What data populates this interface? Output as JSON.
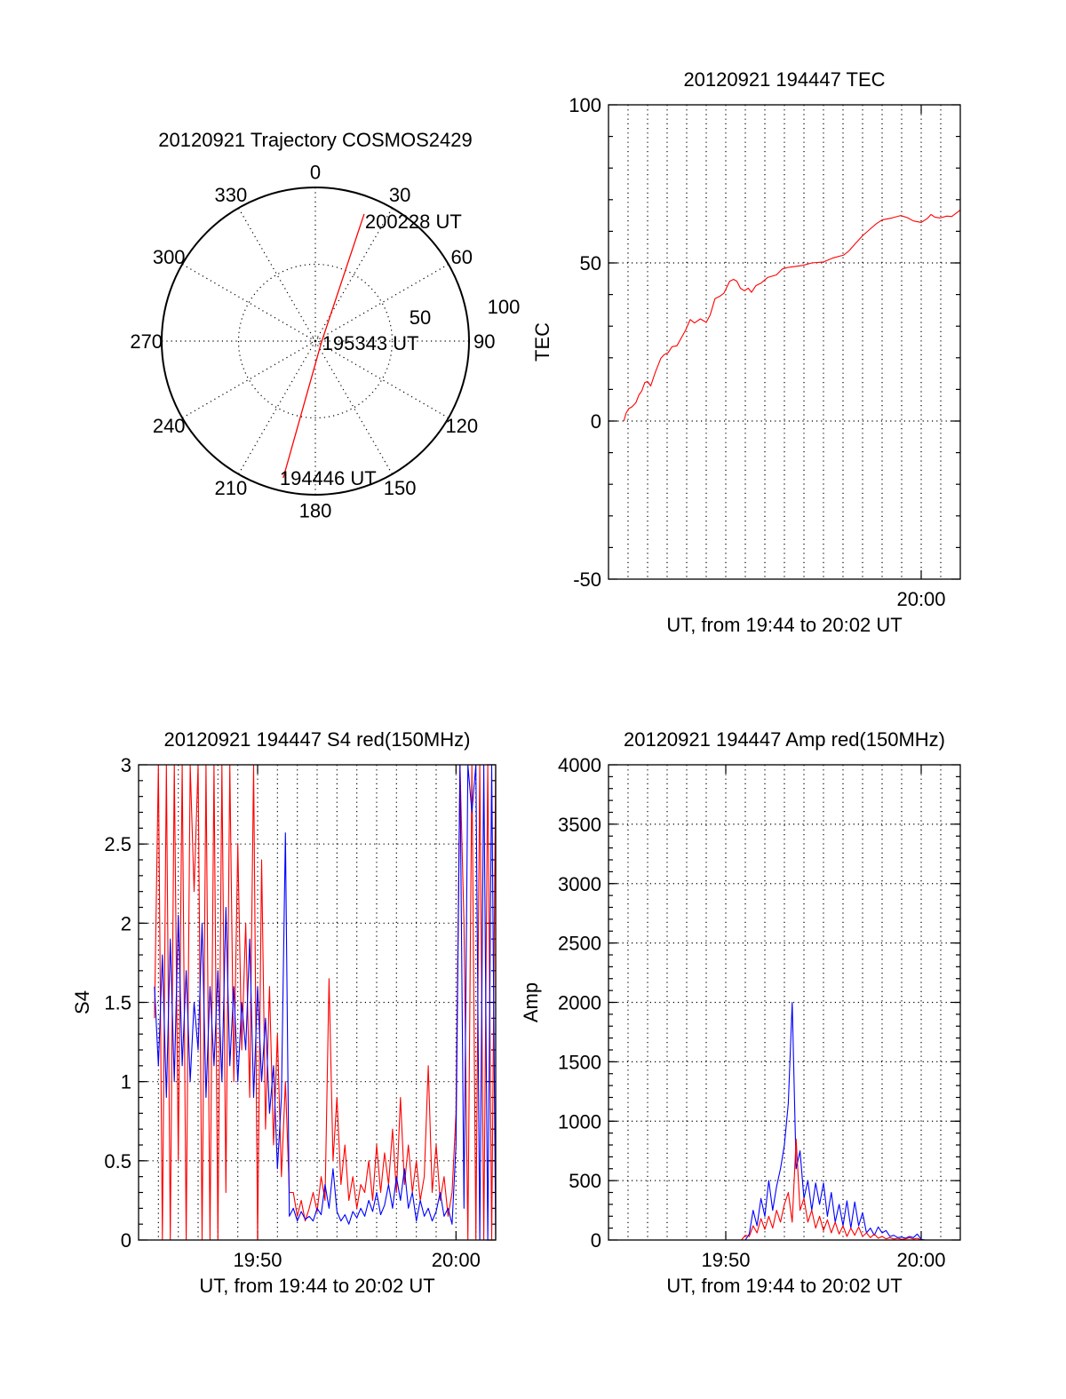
{
  "chart_data": [
    {
      "type": "polar",
      "title": "20120921 Trajectory COSMOS2429",
      "angles": [
        0,
        30,
        60,
        90,
        120,
        150,
        180,
        210,
        240,
        270,
        300,
        330
      ],
      "angle_labels": [
        "0",
        "30",
        "60",
        "90",
        "120",
        "150",
        "180",
        "210",
        "240",
        "270",
        "300",
        "330"
      ],
      "rlim": [
        0,
        100
      ],
      "radial_ticks": [
        50,
        100
      ],
      "radial_labels": [
        "50",
        "100"
      ],
      "trajectory_color": "#ff0000",
      "trajectory": [
        [
          193.2,
          91.5
        ],
        [
          106,
          4
        ],
        [
          21,
          88.6
        ]
      ],
      "annotations": [
        {
          "text": "194446 UT",
          "point": 0
        },
        {
          "text": "195343 UT",
          "point": 1
        },
        {
          "text": "200228 UT",
          "point": 2
        }
      ]
    },
    {
      "type": "line",
      "title": "20120921 194447 TEC",
      "ylabel": "TEC",
      "xlabel": "UT, from 19:44 to 20:02 UT",
      "x_unit": "minutes since 19:44 UT",
      "xlim": [
        0,
        18
      ],
      "ylim": [
        -50,
        100
      ],
      "yticks": [
        -50,
        0,
        50,
        100
      ],
      "ytick_labels": [
        "-50",
        "0",
        "50",
        "100"
      ],
      "yminor": 10,
      "xticks": [
        16
      ],
      "xtick_labels": [
        "20:00"
      ],
      "grid": true,
      "series": [
        {
          "color": "#ff0000",
          "points": [
            [
              0.78,
              0
            ],
            [
              0.9,
              2.5
            ],
            [
              1.03,
              3.9
            ],
            [
              1.2,
              4.5
            ],
            [
              1.4,
              5.8
            ],
            [
              1.56,
              8.3
            ],
            [
              1.7,
              9.5
            ],
            [
              1.86,
              12.2
            ],
            [
              2.0,
              12.5
            ],
            [
              2.16,
              11.1
            ],
            [
              2.4,
              15.5
            ],
            [
              2.68,
              19.9
            ],
            [
              2.85,
              21.0
            ],
            [
              3.05,
              21.6
            ],
            [
              3.25,
              23.5
            ],
            [
              3.5,
              23.8
            ],
            [
              3.7,
              26.0
            ],
            [
              3.95,
              28.8
            ],
            [
              4.18,
              32.1
            ],
            [
              4.4,
              31.0
            ],
            [
              4.7,
              32.3
            ],
            [
              5.0,
              31.2
            ],
            [
              5.2,
              33.5
            ],
            [
              5.45,
              38.7
            ],
            [
              5.7,
              39.5
            ],
            [
              5.9,
              40.4
            ],
            [
              6.2,
              44.2
            ],
            [
              6.4,
              44.8
            ],
            [
              6.57,
              44.2
            ],
            [
              6.75,
              42.0
            ],
            [
              6.95,
              41.2
            ],
            [
              7.15,
              42.0
            ],
            [
              7.32,
              40.7
            ],
            [
              7.54,
              42.8
            ],
            [
              7.8,
              43.6
            ],
            [
              8.14,
              45.4
            ],
            [
              8.59,
              46.2
            ],
            [
              8.89,
              48.1
            ],
            [
              9.2,
              48.6
            ],
            [
              9.94,
              49.2
            ],
            [
              10.4,
              50.0
            ],
            [
              11.0,
              50.3
            ],
            [
              11.5,
              51.6
            ],
            [
              12.04,
              52.5
            ],
            [
              12.3,
              53.8
            ],
            [
              12.6,
              55.9
            ],
            [
              13.0,
              58.6
            ],
            [
              13.4,
              60.8
            ],
            [
              13.7,
              62.4
            ],
            [
              14.0,
              63.6
            ],
            [
              14.5,
              64.2
            ],
            [
              14.96,
              65.0
            ],
            [
              15.3,
              64.3
            ],
            [
              15.6,
              63.3
            ],
            [
              16.0,
              62.8
            ],
            [
              16.3,
              64.0
            ],
            [
              16.5,
              65.3
            ],
            [
              16.7,
              64.5
            ],
            [
              16.97,
              64.2
            ],
            [
              17.3,
              64.8
            ],
            [
              17.57,
              64.7
            ],
            [
              17.8,
              65.8
            ],
            [
              18.0,
              66.7
            ]
          ]
        }
      ]
    },
    {
      "type": "line",
      "title": "20120921 194447 S4 red(150MHz)",
      "ylabel": "S4",
      "xlabel": "UT, from 19:44 to 20:02 UT",
      "x_unit": "minutes since 19:44 UT",
      "xlim": [
        0,
        18
      ],
      "ylim": [
        0,
        3
      ],
      "yticks": [
        0,
        0.5,
        1,
        1.5,
        2,
        2.5,
        3
      ],
      "ytick_labels": [
        "0",
        "0.5",
        "1",
        "1.5",
        "2",
        "2.5",
        "3"
      ],
      "yminor": 0.1,
      "xticks": [
        6,
        16
      ],
      "xtick_labels": [
        "19:50",
        "20:00"
      ],
      "grid": true,
      "series": [
        {
          "color": "#ff0000",
          "x_start": 0.8,
          "x_step": 0.2,
          "values": [
            1.4,
            3,
            0,
            3,
            0,
            3,
            0.5,
            3,
            0,
            3,
            2.2,
            3,
            0,
            3,
            0,
            3,
            0,
            3,
            0.3,
            3,
            1.0,
            2.5,
            1.2,
            2.0,
            0.9,
            3,
            0,
            2.4,
            0.7,
            1.6,
            0.6,
            1.3,
            0.4,
            1.0,
            0.3,
            0.3,
            0.15,
            0.25,
            0.12,
            0.2,
            0.3,
            0.18,
            0.4,
            0.25,
            1.65,
            0.5,
            0.9,
            0.35,
            0.6,
            0.25,
            0.4,
            0.2,
            0.35,
            0.3,
            0.5,
            0.25,
            0.6,
            0.3,
            0.55,
            0.35,
            0.7,
            0.3,
            0.9,
            0.35,
            0.6,
            0.3,
            0.5,
            0.25,
            0.4,
            1.1,
            0.3,
            0.6,
            0.25,
            0.4,
            0.15,
            0.3,
            0.8,
            3,
            2.0,
            0,
            3,
            0,
            3,
            0,
            3,
            0,
            3
          ]
        },
        {
          "color": "#0000ff",
          "x_start": 0.8,
          "x_step": 0.2,
          "values": [
            1.6,
            1.1,
            1.8,
            0.9,
            1.9,
            1.0,
            2.05,
            1.1,
            1.7,
            1.0,
            1.5,
            1.2,
            2.0,
            0.9,
            1.6,
            1.1,
            1.7,
            1.0,
            2.1,
            1.1,
            1.6,
            1.0,
            1.5,
            1.2,
            1.9,
            0.9,
            1.6,
            1.0,
            1.4,
            0.8,
            1.1,
            0.45,
            0.9,
            2.57,
            0.15,
            0.2,
            0.12,
            0.18,
            0.13,
            0.15,
            0.12,
            0.2,
            0.16,
            0.35,
            0.2,
            0.45,
            0.18,
            0.12,
            0.16,
            0.1,
            0.18,
            0.14,
            0.2,
            0.15,
            0.25,
            0.18,
            0.3,
            0.16,
            0.22,
            0.35,
            0.2,
            0.4,
            0.25,
            0.45,
            0.2,
            0.3,
            0.12,
            0.25,
            0.15,
            0.2,
            0.12,
            0.18,
            0.3,
            0.15,
            0.2,
            0.1,
            0.6,
            3,
            0.2,
            3,
            2.7,
            3,
            0,
            3,
            0,
            3,
            0
          ]
        }
      ]
    },
    {
      "type": "line",
      "title": "20120921 194447 Amp red(150MHz)",
      "ylabel": "Amp",
      "xlabel": "UT, from 19:44 to 20:02 UT",
      "x_unit": "minutes since 19:44 UT",
      "xlim": [
        0,
        18
      ],
      "ylim": [
        0,
        4000
      ],
      "yticks": [
        0,
        500,
        1000,
        1500,
        2000,
        2500,
        3000,
        3500,
        4000
      ],
      "ytick_labels": [
        "0",
        "500",
        "1000",
        "1500",
        "2000",
        "2500",
        "3000",
        "3500",
        "4000"
      ],
      "yminor": 100,
      "xticks": [
        6,
        16
      ],
      "xtick_labels": [
        "19:50",
        "20:00"
      ],
      "grid": true,
      "series": [
        {
          "color": "#0000ff",
          "x_start": 0.8,
          "x_step": 0.2,
          "values": [
            0,
            0,
            0,
            0,
            0,
            0,
            0,
            0,
            0,
            0,
            0,
            0,
            0,
            0,
            0,
            0,
            0,
            0,
            0,
            0,
            0,
            0,
            0,
            0,
            0,
            0,
            0,
            0,
            0,
            0,
            0,
            0,
            50,
            250,
            120,
            350,
            200,
            500,
            250,
            450,
            600,
            800,
            1150,
            2000,
            600,
            750,
            350,
            500,
            250,
            480,
            300,
            480,
            200,
            400,
            150,
            300,
            120,
            330,
            100,
            320,
            120,
            230,
            60,
            100,
            40,
            110,
            60,
            80,
            30,
            40,
            20,
            25,
            15,
            30,
            20,
            50,
            5,
            0,
            0,
            0,
            0,
            0,
            0,
            0,
            0,
            0,
            0
          ]
        },
        {
          "color": "#ff0000",
          "x_start": 0.8,
          "x_step": 0.2,
          "values": [
            0,
            0,
            0,
            0,
            0,
            0,
            0,
            0,
            0,
            0,
            0,
            0,
            0,
            0,
            0,
            0,
            0,
            0,
            0,
            0,
            0,
            0,
            0,
            0,
            0,
            0,
            0,
            0,
            0,
            0,
            0,
            40,
            30,
            120,
            60,
            180,
            90,
            200,
            100,
            250,
            150,
            300,
            400,
            150,
            850,
            250,
            350,
            150,
            250,
            100,
            200,
            80,
            170,
            60,
            150,
            50,
            120,
            30,
            100,
            40,
            110,
            30,
            60,
            20,
            50,
            15,
            30,
            10,
            20,
            8,
            15,
            5,
            10,
            20,
            8,
            15,
            0,
            0,
            0,
            0,
            0,
            0,
            0,
            0,
            0,
            0,
            0
          ]
        }
      ]
    }
  ]
}
